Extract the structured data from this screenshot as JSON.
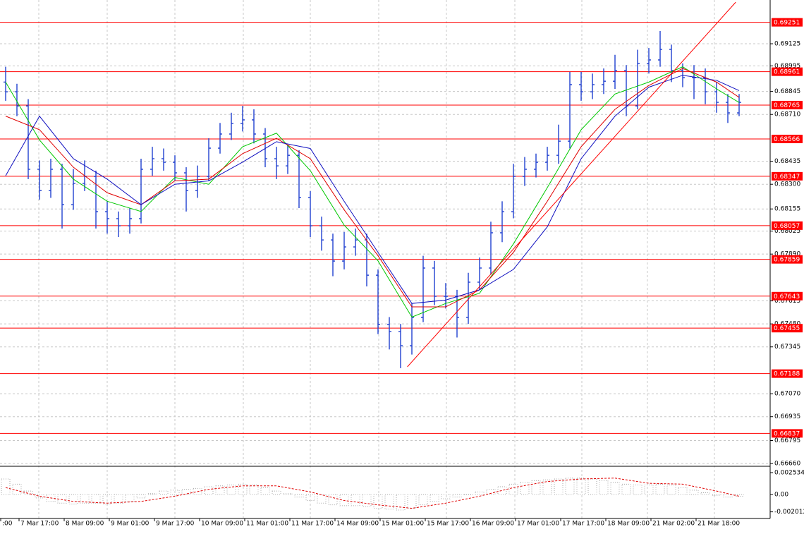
{
  "chart_data": {
    "type": "ohlc",
    "ylim": [
      0.66648,
      0.69382
    ],
    "yticks": [
      0.69125,
      {
        "value": 0.68995,
        "label": "0.68995"
      },
      0.68845,
      {
        "value": 0.6871,
        "label": "0.68710"
      },
      0.68435,
      {
        "value": 0.683,
        "label": "0.68300"
      },
      0.68155,
      0.68025,
      {
        "value": 0.6789,
        "label": "0.67890"
      },
      0.67615,
      {
        "value": 0.6748,
        "label": "0.67480"
      },
      0.67345,
      {
        "value": 0.6707,
        "label": "0.67070"
      },
      0.66935,
      0.66795,
      {
        "value": 0.6666,
        "label": "0.66660"
      }
    ],
    "grid": true,
    "categories": [
      ":00",
      "7 Mar 17:00",
      "8 Mar 09:00",
      "9 Mar 01:00",
      "9 Mar 17:00",
      "10 Mar 09:00",
      "11 Mar 01:00",
      "11 Mar 17:00",
      "14 Mar 09:00",
      "15 Mar 01:00",
      "15 Mar 17:00",
      "16 Mar 09:00",
      "17 Mar 01:00",
      "17 Mar 17:00",
      "18 Mar 09:00",
      "21 Mar 02:00",
      "21 Mar 18:00"
    ],
    "bar_color": "#2040d0",
    "open": [
      0.689,
      0.68843,
      0.6876,
      0.68388,
      0.68263,
      0.68388,
      0.6818,
      0.68305,
      0.68346,
      0.68139,
      0.68098,
      0.68056,
      0.68098,
      0.68388,
      0.6845,
      0.68429,
      0.68367,
      0.68263,
      0.68346,
      0.68512,
      0.68595,
      0.68657,
      0.68678,
      0.68595,
      0.6845,
      0.68408,
      0.6847,
      0.68222,
      0.68056,
      0.67973,
      0.67849,
      0.67932,
      0.67973,
      0.67766,
      0.67476,
      0.67435,
      0.67352,
      0.67518,
      0.67808,
      0.67642,
      0.67642,
      0.67518,
      0.67725,
      0.67808,
      0.68015,
      0.68139,
      0.68346,
      0.68388,
      0.68429,
      0.6847,
      0.68553,
      0.68885,
      0.68843,
      0.68885,
      0.68905,
      0.68968,
      0.6876,
      0.69009,
      0.6903,
      0.69092,
      0.68968,
      0.68926,
      0.68926,
      0.68843,
      0.68781,
      0.68719
    ],
    "high": [
      0.6899,
      0.6889,
      0.688,
      0.6844,
      0.6845,
      0.6842,
      0.6839,
      0.6844,
      0.6838,
      0.682,
      0.6814,
      0.6816,
      0.6845,
      0.6852,
      0.6851,
      0.6847,
      0.684,
      0.6841,
      0.6857,
      0.6866,
      0.6872,
      0.6876,
      0.6874,
      0.6863,
      0.6852,
      0.6853,
      0.685,
      0.6826,
      0.6811,
      0.6801,
      0.6802,
      0.6804,
      0.6801,
      0.678,
      0.6752,
      0.6748,
      0.676,
      0.6788,
      0.6785,
      0.6772,
      0.6768,
      0.6778,
      0.6787,
      0.6808,
      0.682,
      0.6842,
      0.6846,
      0.6848,
      0.6852,
      0.6865,
      0.6896,
      0.6896,
      0.6895,
      0.6898,
      0.6906,
      0.69,
      0.6909,
      0.691,
      0.692,
      0.6912,
      0.6901,
      0.69,
      0.6898,
      0.689,
      0.6883,
      0.6883
    ],
    "low": [
      0.6879,
      0.687,
      0.6833,
      0.6821,
      0.6822,
      0.6804,
      0.6815,
      0.6826,
      0.6804,
      0.6801,
      0.6799,
      0.6801,
      0.6807,
      0.6835,
      0.6838,
      0.6832,
      0.6814,
      0.6822,
      0.6832,
      0.6848,
      0.6856,
      0.6861,
      0.6854,
      0.684,
      0.6833,
      0.6836,
      0.6816,
      0.6799,
      0.6791,
      0.6776,
      0.678,
      0.6788,
      0.677,
      0.6742,
      0.6733,
      0.6722,
      0.673,
      0.6749,
      0.6759,
      0.6757,
      0.674,
      0.6748,
      0.6768,
      0.6777,
      0.6796,
      0.681,
      0.6829,
      0.6834,
      0.6838,
      0.6842,
      0.6851,
      0.6879,
      0.688,
      0.6883,
      0.6886,
      0.687,
      0.6874,
      0.6895,
      0.6899,
      0.689,
      0.6887,
      0.688,
      0.6877,
      0.6872,
      0.6866,
      0.687
    ],
    "close": [
      0.68843,
      0.6876,
      0.68388,
      0.68263,
      0.68388,
      0.6818,
      0.68305,
      0.68346,
      0.68139,
      0.68098,
      0.68056,
      0.68098,
      0.68388,
      0.6845,
      0.68429,
      0.68367,
      0.68263,
      0.68346,
      0.68512,
      0.68595,
      0.68657,
      0.68678,
      0.68595,
      0.6845,
      0.68408,
      0.6847,
      0.68222,
      0.68056,
      0.67973,
      0.67849,
      0.67932,
      0.67973,
      0.67766,
      0.67476,
      0.67435,
      0.67352,
      0.67518,
      0.67808,
      0.67642,
      0.67642,
      0.67518,
      0.67725,
      0.67808,
      0.68015,
      0.68139,
      0.68346,
      0.68388,
      0.68429,
      0.6847,
      0.68553,
      0.68885,
      0.68843,
      0.68885,
      0.68905,
      0.68968,
      0.6876,
      0.69009,
      0.6903,
      0.69092,
      0.68968,
      0.68926,
      0.68926,
      0.68843,
      0.68781,
      0.68719,
      0.68781
    ],
    "series": [
      {
        "color": "#00c800",
        "x": [
          0,
          3,
          6,
          9,
          12,
          15,
          18,
          21,
          24,
          27,
          30,
          33,
          36,
          39,
          42,
          45,
          48,
          51,
          54,
          57,
          60,
          63,
          65
        ],
        "values": [
          0.689,
          0.6856,
          0.6833,
          0.682,
          0.6814,
          0.6834,
          0.683,
          0.6852,
          0.686,
          0.6838,
          0.6806,
          0.6785,
          0.6752,
          0.676,
          0.6766,
          0.6795,
          0.6828,
          0.6862,
          0.6883,
          0.689,
          0.6899,
          0.6886,
          0.6878
        ]
      },
      {
        "color": "#e00000",
        "x": [
          0,
          3,
          6,
          9,
          12,
          15,
          18,
          21,
          24,
          27,
          30,
          33,
          36,
          39,
          42,
          45,
          48,
          51,
          54,
          57,
          60,
          63,
          65
        ],
        "values": [
          0.687,
          0.6862,
          0.684,
          0.6825,
          0.6818,
          0.6832,
          0.6833,
          0.6848,
          0.6857,
          0.6845,
          0.6815,
          0.6788,
          0.6758,
          0.6758,
          0.6768,
          0.679,
          0.682,
          0.6852,
          0.6874,
          0.6888,
          0.6898,
          0.689,
          0.6881
        ]
      },
      {
        "color": "#1010c0",
        "x": [
          0,
          3,
          6,
          9,
          12,
          15,
          18,
          21,
          24,
          27,
          30,
          33,
          36,
          39,
          42,
          45,
          48,
          51,
          54,
          57,
          60,
          63,
          65
        ],
        "values": [
          0.6835,
          0.687,
          0.6845,
          0.6833,
          0.6818,
          0.683,
          0.6832,
          0.6843,
          0.6855,
          0.6851,
          0.682,
          0.679,
          0.676,
          0.6762,
          0.6768,
          0.678,
          0.6805,
          0.6845,
          0.687,
          0.6887,
          0.6894,
          0.6891,
          0.6885
        ]
      }
    ],
    "levels": [
      0.69251,
      0.68961,
      0.68765,
      0.68566,
      0.68347,
      0.68057,
      0.67859,
      0.67643,
      0.67455,
      0.67188,
      0.66837
    ],
    "level_color": "#ff0000",
    "trendline": {
      "x": [
        35.6,
        64.7
      ],
      "values": [
        0.67228,
        0.69369
      ],
      "color": "#ff0000"
    },
    "indicator": {
      "ylim": [
        -0.00278,
        0.003188
      ],
      "yticks": [
        0.002534,
        {
          "value": 0,
          "label": "0.00"
        },
        -0.002012
      ],
      "histogram_color": "#a8a8a8",
      "histogram": [
        0.0018,
        0.0012,
        0.0004,
        -0.0004,
        -0.0008,
        -0.001,
        -0.0011,
        -0.001,
        -0.001,
        -0.0011,
        -0.001,
        -0.0008,
        -0.0004,
        0.0001,
        0.0004,
        0.0005,
        0.0006,
        0.0007,
        0.0009,
        0.001,
        0.0011,
        0.0012,
        0.0011,
        0.0008,
        0.0004,
        0.0001,
        -0.0003,
        -0.0007,
        -0.001,
        -0.0012,
        -0.0013,
        -0.0013,
        -0.0014,
        -0.0016,
        -0.0017,
        -0.0018,
        -0.0016,
        -0.0012,
        -0.0008,
        -0.0005,
        -0.0003,
        0,
        0.0003,
        0.0006,
        0.0009,
        0.0012,
        0.0014,
        0.0016,
        0.0017,
        0.0018,
        0.0019,
        0.0019,
        0.0018,
        0.0016,
        0.0014,
        0.0012,
        0.0011,
        0.0011,
        0.0012,
        0.0011,
        0.0008,
        0.0005,
        0.0002,
        -0.0001,
        -0.0003,
        -0.0002
      ],
      "signal": {
        "color": "#e00000",
        "x": [
          0,
          3,
          6,
          9,
          12,
          15,
          18,
          21,
          24,
          27,
          30,
          33,
          36,
          39,
          42,
          45,
          48,
          51,
          54,
          57,
          60,
          63,
          65
        ],
        "values": [
          0.0008,
          -0.0002,
          -0.0008,
          -0.001,
          -0.0008,
          -0.0002,
          0.0006,
          0.001,
          0.001,
          0.0003,
          -0.0007,
          -0.0012,
          -0.0016,
          -0.001,
          -0.0002,
          0.0008,
          0.0015,
          0.0018,
          0.0019,
          0.0013,
          0.0012,
          0.0004,
          -0.0002
        ]
      }
    }
  }
}
